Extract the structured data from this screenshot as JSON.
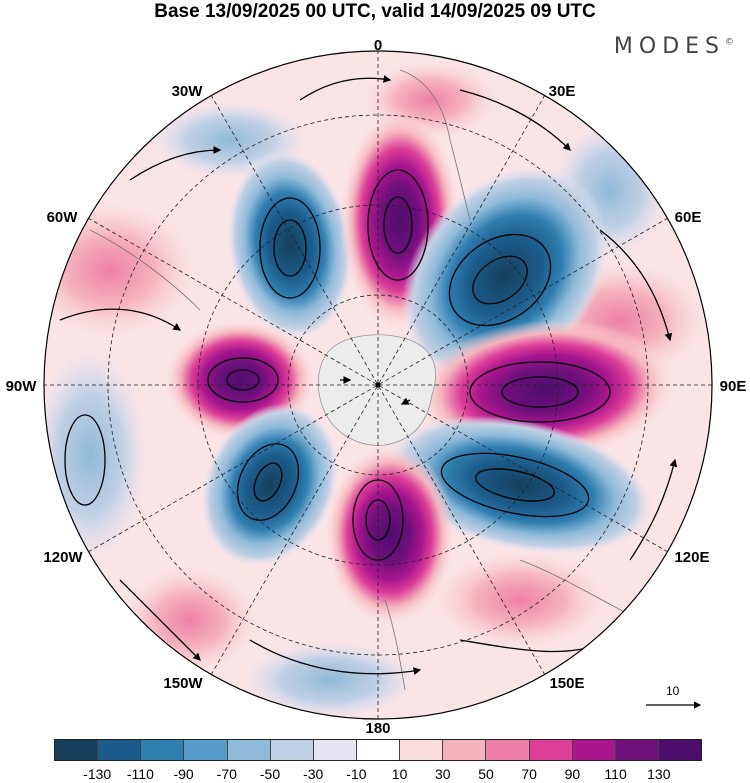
{
  "header": {
    "title": "Base 13/09/2025 00 UTC, valid 14/09/2025 09 UTC",
    "brand": "MODES",
    "brand_mark": "©"
  },
  "map": {
    "projection": "south polar stereographic",
    "lon_labels": {
      "top": "0",
      "upper_left": "30W",
      "upper_right": "30E",
      "left_upper": "60W",
      "right_upper": "60E",
      "left": "90W",
      "right": "90E",
      "left_lower": "120W",
      "right_lower": "120E",
      "lower_left": "150W",
      "lower_right": "150E",
      "bottom": "180"
    },
    "reference_vector": "10"
  },
  "colorbar": {
    "ticks": [
      "-130",
      "-110",
      "-90",
      "-70",
      "-50",
      "-30",
      "-10",
      "10",
      "30",
      "50",
      "70",
      "90",
      "110",
      "130"
    ],
    "colors": [
      "#173f5c",
      "#1b5c8a",
      "#2f7fb0",
      "#559dc8",
      "#8fbad9",
      "#c1d0e5",
      "#e6e6f2",
      "#ffffff",
      "#fbdcdd",
      "#f5b3bd",
      "#ee7fa8",
      "#dc3e98",
      "#a9168d",
      "#6e0f7c",
      "#4e0e6e"
    ]
  }
}
